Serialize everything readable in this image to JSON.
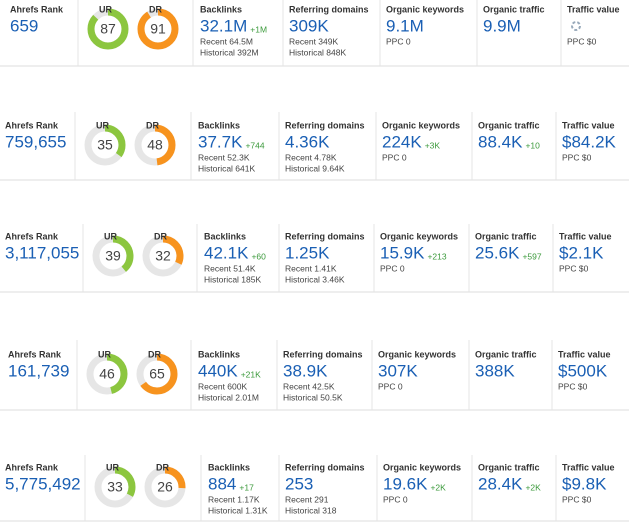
{
  "labels": {
    "ahrefs_rank": "Ahrefs Rank",
    "ur": "UR",
    "dr": "DR",
    "backlinks": "Backlinks",
    "referring_domains": "Referring domains",
    "organic_keywords": "Organic keywords",
    "organic_traffic": "Organic traffic",
    "traffic_value": "Traffic value"
  },
  "rows": [
    {
      "ahrefs_rank": "659",
      "ur": 87,
      "dr": 91,
      "backlinks": {
        "value": "32.1M",
        "delta": "+1M",
        "recent": "Recent 64.5M",
        "historical": "Historical 392M"
      },
      "referring_domains": {
        "value": "309K",
        "recent": "Recent 349K",
        "historical": "Historical 848K"
      },
      "organic_keywords": {
        "value": "9.1M",
        "ppc": "PPC 0"
      },
      "organic_traffic": {
        "value": "9.9M"
      },
      "traffic_value": {
        "ppc": "PPC $0"
      }
    },
    {
      "ahrefs_rank": "759,655",
      "ur": 35,
      "dr": 48,
      "backlinks": {
        "value": "37.7K",
        "delta": "+744",
        "recent": "Recent 52.3K",
        "historical": "Historical 641K"
      },
      "referring_domains": {
        "value": "4.36K",
        "recent": "Recent 4.78K",
        "historical": "Historical 9.64K"
      },
      "organic_keywords": {
        "value": "224K",
        "delta": "+3K",
        "ppc": "PPC 0"
      },
      "organic_traffic": {
        "value": "88.4K",
        "delta": "+10"
      },
      "traffic_value": {
        "value": "$84.2K",
        "ppc": "PPC $0"
      }
    },
    {
      "ahrefs_rank": "3,117,055",
      "ur": 39,
      "dr": 32,
      "backlinks": {
        "value": "42.1K",
        "delta": "+60",
        "recent": "Recent 51.4K",
        "historical": "Historical 185K"
      },
      "referring_domains": {
        "value": "1.25K",
        "recent": "Recent 1.41K",
        "historical": "Historical 3.46K"
      },
      "organic_keywords": {
        "value": "15.9K",
        "delta": "+213",
        "ppc": "PPC 0"
      },
      "organic_traffic": {
        "value": "25.6K",
        "delta": "+597"
      },
      "traffic_value": {
        "value": "$2.1K",
        "ppc": "PPC $0"
      }
    },
    {
      "ahrefs_rank": "161,739",
      "ur": 46,
      "dr": 65,
      "backlinks": {
        "value": "440K",
        "delta": "+21K",
        "recent": "Recent 600K",
        "historical": "Historical 2.01M"
      },
      "referring_domains": {
        "value": "38.9K",
        "recent": "Recent 42.5K",
        "historical": "Historical 50.5K"
      },
      "organic_keywords": {
        "value": "307K",
        "ppc": "PPC 0"
      },
      "organic_traffic": {
        "value": "388K"
      },
      "traffic_value": {
        "value": "$500K",
        "ppc": "PPC $0"
      }
    },
    {
      "ahrefs_rank": "5,775,492",
      "ur": 33,
      "dr": 26,
      "backlinks": {
        "value": "884",
        "delta": "+17",
        "recent": "Recent 1.17K",
        "historical": "Historical 1.31K"
      },
      "referring_domains": {
        "value": "253",
        "recent": "Recent 291",
        "historical": "Historical 318"
      },
      "organic_keywords": {
        "value": "19.6K",
        "delta": "+2K",
        "ppc": "PPC 0"
      },
      "organic_traffic": {
        "value": "28.4K",
        "delta": "+2K"
      },
      "traffic_value": {
        "value": "$9.8K",
        "ppc": "PPC $0"
      }
    }
  ]
}
